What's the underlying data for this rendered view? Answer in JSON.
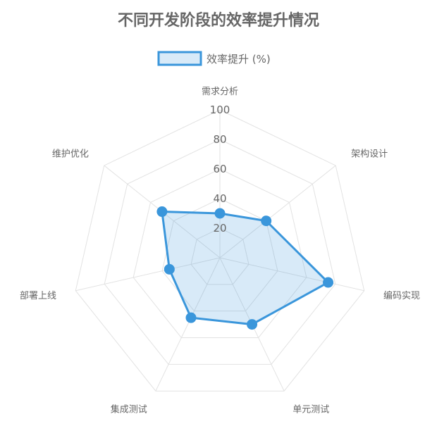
{
  "chart_data": {
    "type": "radar",
    "title": "不同开发阶段的效率提升情况",
    "categories": [
      "需求分析",
      "架构设计",
      "编码实现",
      "单元测试",
      "集成测试",
      "部署上线",
      "维护优化"
    ],
    "series": [
      {
        "name": "效率提升 (%)",
        "values": [
          30,
          40,
          75,
          50,
          45,
          35,
          50
        ],
        "stroke": "#3a96db",
        "fill": "rgba(58,150,219,0.2)"
      }
    ],
    "ticks": [
      "20",
      "40",
      "60",
      "80",
      "100"
    ],
    "rmin": 0,
    "rmax": 100,
    "grid": true,
    "legend_position": "top"
  }
}
